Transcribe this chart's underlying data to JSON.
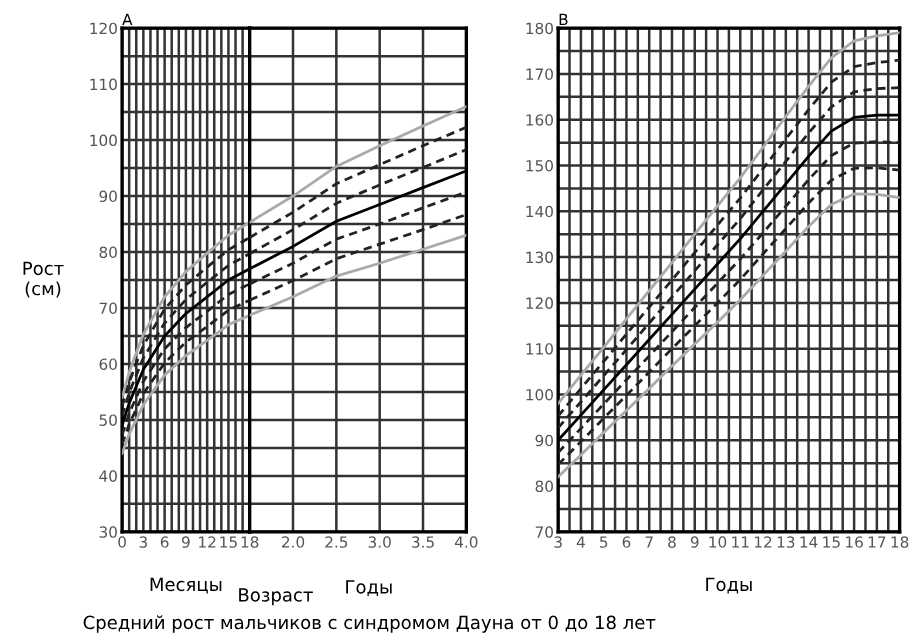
{
  "chart_data": [
    {
      "type": "line",
      "title": "A",
      "xlabel": "Месяцы",
      "ylabel": "Рост\n(см)",
      "annotations": [
        "Возраст",
        "Средний рост мальчиков с синдромом Дауна от 0 до 18 лет"
      ],
      "x": [
        0,
        1,
        2,
        3,
        6,
        9,
        12,
        15,
        18
      ],
      "series": [
        {
          "color": "#aaaaaa",
          "line_style": "solid",
          "values": [
            54,
            58.5,
            62,
            65.3,
            72,
            76.5,
            79.8,
            83,
            85.3
          ]
        },
        {
          "color": "#222222",
          "line_style": "dashed",
          "values": [
            52.4,
            56.7,
            60.1,
            63.3,
            69.8,
            74.1,
            77.3,
            80.4,
            82.6
          ]
        },
        {
          "color": "#222222",
          "line_style": "dashed",
          "values": [
            50.7,
            54.8,
            58,
            61.1,
            67.3,
            71.5,
            74.6,
            77.6,
            79.7
          ]
        },
        {
          "color": "#000000",
          "line_style": "solid",
          "values": [
            49,
            53,
            56,
            59,
            65,
            69,
            72,
            75,
            77
          ]
        },
        {
          "color": "#222222",
          "line_style": "dashed",
          "values": [
            47.3,
            51.2,
            54,
            56.9,
            62.7,
            66.5,
            69.4,
            72.4,
            74.3
          ]
        },
        {
          "color": "#222222",
          "line_style": "dashed",
          "values": [
            45.6,
            49.3,
            51.9,
            54.7,
            60.2,
            63.9,
            66.7,
            69.6,
            71.4
          ]
        },
        {
          "color": "#aaaaaa",
          "line_style": "solid",
          "values": [
            44,
            47.5,
            50,
            52.7,
            58,
            61.5,
            64.2,
            67,
            68.7
          ]
        }
      ],
      "xlim": [
        0,
        18
      ],
      "xticks": [
        0,
        {
          "value": 1,
          "label": null
        },
        {
          "value": 2,
          "label": null
        },
        3,
        {
          "value": 4,
          "label": null
        },
        {
          "value": 5,
          "label": null
        },
        6,
        {
          "value": 7,
          "label": null
        },
        {
          "value": 8,
          "label": null
        },
        9,
        {
          "value": 10,
          "label": null
        },
        {
          "value": 11,
          "label": null
        },
        12,
        {
          "value": 13,
          "label": null
        },
        {
          "value": 14,
          "label": null
        },
        15,
        {
          "value": 16,
          "label": null
        },
        {
          "value": 17,
          "label": null
        },
        18
      ],
      "ylim": [
        30,
        120
      ],
      "yticks": [
        30,
        {
          "value": 35,
          "label": null
        },
        40,
        {
          "value": 45,
          "label": null
        },
        50,
        {
          "value": 55,
          "label": null
        },
        60,
        {
          "value": 65,
          "label": null
        },
        70,
        {
          "value": 75,
          "label": null
        },
        80,
        {
          "value": 85,
          "label": null
        },
        90,
        {
          "value": 95,
          "label": null
        },
        100,
        {
          "value": 105,
          "label": null
        },
        110,
        {
          "value": 115,
          "label": null
        },
        120
      ],
      "grid": true,
      "legend": false
    },
    {
      "type": "line",
      "xlabel": "Годы",
      "tick_labels": "x",
      "x": [
        1.5,
        2,
        2.5,
        3,
        3.5,
        4
      ],
      "series": [
        {
          "color": "#aaaaaa",
          "line_style": "solid",
          "values": [
            85.3,
            90,
            95.3,
            99,
            102.5,
            106
          ]
        },
        {
          "color": "#222222",
          "line_style": "dashed",
          "values": [
            82.6,
            87.1,
            92.2,
            95.6,
            99,
            102.3
          ]
        },
        {
          "color": "#222222",
          "line_style": "dashed",
          "values": [
            79.7,
            84,
            88.7,
            92,
            95.1,
            98.3
          ]
        },
        {
          "color": "#000000",
          "line_style": "solid",
          "values": [
            77,
            81,
            85.5,
            88.5,
            91.5,
            94.5
          ]
        },
        {
          "color": "#222222",
          "line_style": "dashed",
          "values": [
            74.3,
            78,
            82.3,
            85,
            87.9,
            90.7
          ]
        },
        {
          "color": "#222222",
          "line_style": "dashed",
          "values": [
            71.4,
            74.9,
            78.8,
            81.4,
            84,
            86.7
          ]
        },
        {
          "color": "#aaaaaa",
          "line_style": "solid",
          "values": [
            68.7,
            72,
            75.7,
            78,
            80.5,
            83
          ]
        }
      ],
      "xlim": [
        1.5,
        4
      ],
      "xticks": [
        {
          "value": 2,
          "label": "2.0"
        },
        2.5,
        {
          "value": 3,
          "label": "3.0"
        },
        3.5,
        {
          "value": 4,
          "label": "4.0"
        }
      ],
      "ylim": [
        30,
        120
      ],
      "yticks": [
        {
          "value": 30,
          "label": null
        },
        {
          "value": 35,
          "label": null
        },
        {
          "value": 40,
          "label": null
        },
        {
          "value": 45,
          "label": null
        },
        {
          "value": 50,
          "label": null
        },
        {
          "value": 55,
          "label": null
        },
        {
          "value": 60,
          "label": null
        },
        {
          "value": 65,
          "label": null
        },
        {
          "value": 70,
          "label": null
        },
        {
          "value": 75,
          "label": null
        },
        {
          "value": 80,
          "label": null
        },
        {
          "value": 85,
          "label": null
        },
        {
          "value": 90,
          "label": null
        },
        {
          "value": 95,
          "label": null
        },
        {
          "value": 100,
          "label": null
        },
        {
          "value": 105,
          "label": null
        },
        {
          "value": 110,
          "label": null
        },
        {
          "value": 115,
          "label": null
        },
        {
          "value": 120,
          "label": null
        }
      ],
      "grid": true,
      "legend": false
    },
    {
      "type": "line",
      "title": "B",
      "xlabel": "Годы",
      "x": [
        3,
        4,
        5,
        6,
        7,
        8,
        9,
        10,
        11,
        12,
        13,
        14,
        15,
        16,
        17,
        18
      ],
      "series": [
        {
          "color": "#aaaaaa",
          "line_style": "solid",
          "values": [
            98,
            104.2,
            110.3,
            116.5,
            122.7,
            128.8,
            135,
            141.2,
            147.3,
            154,
            160.7,
            167.3,
            173.5,
            177.2,
            178.3,
            179
          ]
        },
        {
          "color": "#222222",
          "line_style": "dashed",
          "values": [
            95.3,
            101.3,
            107.2,
            113.2,
            119.1,
            125,
            131,
            137,
            142.9,
            149.3,
            155.8,
            162.2,
            168.2,
            171.6,
            172.5,
            173
          ]
        },
        {
          "color": "#222222",
          "line_style": "dashed",
          "values": [
            92.7,
            98.4,
            104.1,
            109.8,
            115.6,
            121.3,
            127,
            132.7,
            138.4,
            144.7,
            150.9,
            157.1,
            162.8,
            166.1,
            166.8,
            167
          ]
        },
        {
          "color": "#000000",
          "line_style": "solid",
          "values": [
            90,
            95.5,
            101,
            106.5,
            112,
            117.5,
            123,
            128.5,
            134,
            140,
            146,
            152,
            157.5,
            160.5,
            161,
            161
          ]
        },
        {
          "color": "#222222",
          "line_style": "dashed",
          "values": [
            87.3,
            92.6,
            97.9,
            103.2,
            108.4,
            113.7,
            119,
            124.3,
            129.6,
            135.3,
            141.1,
            146.9,
            152.2,
            154.9,
            155.2,
            155
          ]
        },
        {
          "color": "#222222",
          "line_style": "dashed",
          "values": [
            84.7,
            89.7,
            94.8,
            99.8,
            104.9,
            110,
            115,
            120,
            125.1,
            130.7,
            136.2,
            141.8,
            146.8,
            149.4,
            149.5,
            149
          ]
        },
        {
          "color": "#aaaaaa",
          "line_style": "solid",
          "values": [
            82,
            86.8,
            91.7,
            96.5,
            101.3,
            106.2,
            111,
            115.8,
            120.7,
            126,
            131.3,
            136.7,
            141.5,
            143.8,
            143.7,
            143
          ]
        }
      ],
      "xlim": [
        3,
        18
      ],
      "xticks": [
        3,
        {
          "value": 3.5,
          "label": null
        },
        4,
        {
          "value": 4.5,
          "label": null
        },
        5,
        {
          "value": 5.5,
          "label": null
        },
        6,
        {
          "value": 6.5,
          "label": null
        },
        7,
        {
          "value": 7.5,
          "label": null
        },
        8,
        {
          "value": 8.5,
          "label": null
        },
        9,
        {
          "value": 9.5,
          "label": null
        },
        10,
        {
          "value": 10.5,
          "label": null
        },
        11,
        {
          "value": 11.5,
          "label": null
        },
        12,
        {
          "value": 12.5,
          "label": null
        },
        13,
        {
          "value": 13.5,
          "label": null
        },
        14,
        {
          "value": 14.5,
          "label": null
        },
        15,
        {
          "value": 15.5,
          "label": null
        },
        16,
        {
          "value": 16.5,
          "label": null
        },
        17,
        {
          "value": 17.5,
          "label": null
        },
        18
      ],
      "ylim": [
        70,
        180
      ],
      "yticks": [
        70,
        {
          "value": 75,
          "label": null
        },
        80,
        {
          "value": 85,
          "label": null
        },
        90,
        {
          "value": 95,
          "label": null
        },
        100,
        {
          "value": 105,
          "label": null
        },
        110,
        {
          "value": 115,
          "label": null
        },
        120,
        {
          "value": 125,
          "label": null
        },
        130,
        {
          "value": 135,
          "label": null
        },
        140,
        {
          "value": 145,
          "label": null
        },
        150,
        {
          "value": 155,
          "label": null
        },
        160,
        {
          "value": 165,
          "label": null
        },
        170,
        {
          "value": 175,
          "label": null
        },
        180
      ],
      "grid": true,
      "legend": false
    }
  ]
}
